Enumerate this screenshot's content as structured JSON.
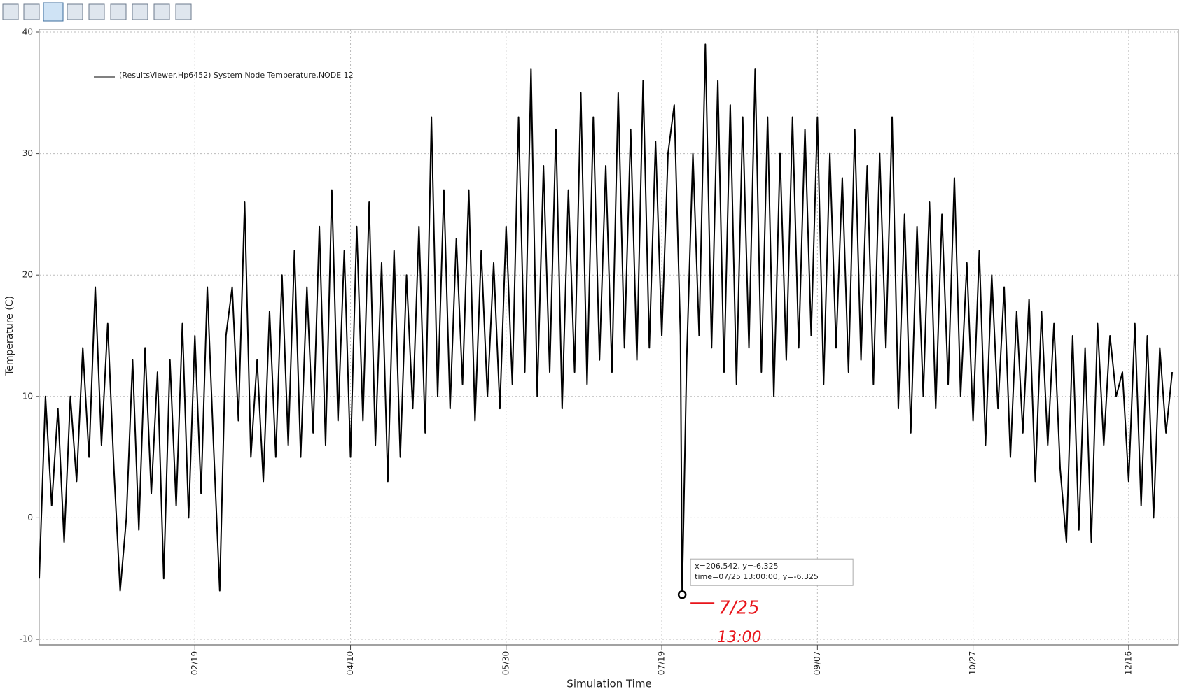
{
  "chart_data": {
    "type": "line",
    "legend_label": "(ResultsViewer.Hp6452) System Node Temperature,NODE 12",
    "x_label": "Simulation Time",
    "y_label": "Temperature (C)",
    "xlim": [
      0,
      366
    ],
    "ylim": [
      -10,
      40
    ],
    "yticks": [
      -10,
      0,
      10,
      20,
      30,
      40
    ],
    "xticks": [
      {
        "value": 50,
        "label": "02/19"
      },
      {
        "value": 100,
        "label": "04/10"
      },
      {
        "value": 150,
        "label": "05/30"
      },
      {
        "value": 200,
        "label": "07/19"
      },
      {
        "value": 250,
        "label": "09/07"
      },
      {
        "value": 300,
        "label": "10/27"
      },
      {
        "value": 350,
        "label": "12/16"
      }
    ],
    "grid": true,
    "series": [
      {
        "name": "(ResultsViewer.Hp6452) System Node Temperature,NODE 12",
        "color": "#000000",
        "x": [
          0,
          2,
          4,
          6,
          8,
          10,
          12,
          14,
          16,
          18,
          20,
          22,
          24,
          26,
          28,
          30,
          32,
          34,
          36,
          38,
          40,
          42,
          44,
          46,
          48,
          50,
          52,
          54,
          56,
          58,
          60,
          62,
          64,
          66,
          68,
          70,
          72,
          74,
          76,
          78,
          80,
          82,
          84,
          86,
          88,
          90,
          92,
          94,
          96,
          98,
          100,
          102,
          104,
          106,
          108,
          110,
          112,
          114,
          116,
          118,
          120,
          122,
          124,
          126,
          128,
          130,
          132,
          134,
          136,
          138,
          140,
          142,
          144,
          146,
          148,
          150,
          152,
          154,
          156,
          158,
          160,
          162,
          164,
          166,
          168,
          170,
          172,
          174,
          176,
          178,
          180,
          182,
          184,
          186,
          188,
          190,
          192,
          194,
          196,
          198,
          200,
          202,
          204,
          206,
          206.542,
          208,
          210,
          212,
          214,
          216,
          218,
          220,
          222,
          224,
          226,
          228,
          230,
          232,
          234,
          236,
          238,
          240,
          242,
          244,
          246,
          248,
          250,
          252,
          254,
          256,
          258,
          260,
          262,
          264,
          266,
          268,
          270,
          272,
          274,
          276,
          278,
          280,
          282,
          284,
          286,
          288,
          290,
          292,
          294,
          296,
          298,
          300,
          302,
          304,
          306,
          308,
          310,
          312,
          314,
          316,
          318,
          320,
          322,
          324,
          326,
          328,
          330,
          332,
          334,
          336,
          338,
          340,
          342,
          344,
          346,
          348,
          350,
          352,
          354,
          356,
          358,
          360,
          362,
          364
        ],
        "values": [
          -5,
          10,
          1,
          9,
          -2,
          10,
          3,
          14,
          5,
          19,
          6,
          16,
          4,
          -6,
          0,
          13,
          -1,
          14,
          2,
          12,
          -5,
          13,
          1,
          16,
          0,
          15,
          2,
          19,
          6,
          -6,
          15,
          19,
          8,
          26,
          5,
          13,
          3,
          17,
          5,
          20,
          6,
          22,
          5,
          19,
          7,
          24,
          6,
          27,
          8,
          22,
          5,
          24,
          8,
          26,
          6,
          21,
          3,
          22,
          5,
          20,
          9,
          24,
          7,
          33,
          10,
          27,
          9,
          23,
          11,
          27,
          8,
          22,
          10,
          21,
          9,
          24,
          11,
          33,
          12,
          37,
          10,
          29,
          12,
          32,
          9,
          27,
          12,
          35,
          11,
          33,
          13,
          29,
          12,
          35,
          14,
          32,
          13,
          36,
          14,
          31,
          15,
          30,
          34,
          15,
          -6.325,
          13,
          30,
          15,
          39,
          14,
          36,
          12,
          34,
          11,
          33,
          14,
          37,
          12,
          33,
          10,
          30,
          13,
          33,
          14,
          32,
          15,
          33,
          11,
          30,
          14,
          28,
          12,
          32,
          13,
          29,
          11,
          30,
          14,
          33,
          9,
          25,
          7,
          24,
          10,
          26,
          9,
          25,
          11,
          28,
          10,
          21,
          8,
          22,
          6,
          20,
          9,
          19,
          5,
          17,
          7,
          18,
          3,
          17,
          6,
          16,
          4,
          -2,
          15,
          -1,
          14,
          -2,
          16,
          6,
          15,
          10,
          12,
          3,
          16,
          1,
          15,
          0,
          14,
          7,
          12
        ]
      }
    ],
    "highlight": {
      "x": 206.542,
      "y": -6.325
    },
    "tooltip": [
      "x=206.542, y=-6.325",
      "time=07/25 13:00:00, y=-6.325"
    ],
    "annotations": [
      "7/25",
      "13:00"
    ]
  }
}
